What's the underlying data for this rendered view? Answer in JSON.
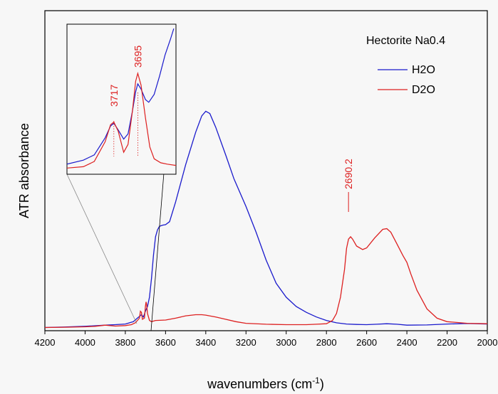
{
  "chart_data": {
    "type": "line",
    "title": "",
    "xlabel": "wavenumbers (cm",
    "xlabel_sup": "-1",
    "xlabel_close": ")",
    "ylabel": "ATR absorbance",
    "xlim": [
      4200,
      2000
    ],
    "x_reversed": true,
    "y_ticks_shown": false,
    "x_ticks": [
      4200,
      4000,
      3800,
      3600,
      3400,
      3200,
      3000,
      2800,
      2600,
      2400,
      2200,
      2000
    ],
    "legend": {
      "title": "Hectorite Na0.4",
      "placement": "top-right"
    },
    "series": [
      {
        "name": "H2O",
        "color": "#1a1acc",
        "points": [
          [
            4200,
            0.02
          ],
          [
            4100,
            0.022
          ],
          [
            4000,
            0.025
          ],
          [
            3900,
            0.03
          ],
          [
            3850,
            0.032
          ],
          [
            3800,
            0.035
          ],
          [
            3760,
            0.045
          ],
          [
            3740,
            0.06
          ],
          [
            3720,
            0.075
          ],
          [
            3710,
            0.065
          ],
          [
            3700,
            0.09
          ],
          [
            3690,
            0.11
          ],
          [
            3680,
            0.15
          ],
          [
            3670,
            0.23
          ],
          [
            3660,
            0.33
          ],
          [
            3650,
            0.41
          ],
          [
            3640,
            0.44
          ],
          [
            3630,
            0.455
          ],
          [
            3615,
            0.46
          ],
          [
            3600,
            0.462
          ],
          [
            3580,
            0.475
          ],
          [
            3550,
            0.56
          ],
          [
            3500,
            0.72
          ],
          [
            3450,
            0.86
          ],
          [
            3420,
            0.93
          ],
          [
            3400,
            0.95
          ],
          [
            3380,
            0.94
          ],
          [
            3350,
            0.88
          ],
          [
            3300,
            0.76
          ],
          [
            3260,
            0.66
          ],
          [
            3220,
            0.58
          ],
          [
            3200,
            0.54
          ],
          [
            3150,
            0.43
          ],
          [
            3100,
            0.31
          ],
          [
            3050,
            0.21
          ],
          [
            3000,
            0.15
          ],
          [
            2950,
            0.11
          ],
          [
            2900,
            0.085
          ],
          [
            2850,
            0.065
          ],
          [
            2800,
            0.05
          ],
          [
            2750,
            0.04
          ],
          [
            2700,
            0.035
          ],
          [
            2650,
            0.033
          ],
          [
            2600,
            0.032
          ],
          [
            2550,
            0.034
          ],
          [
            2500,
            0.036
          ],
          [
            2450,
            0.034
          ],
          [
            2400,
            0.03
          ],
          [
            2300,
            0.031
          ],
          [
            2200,
            0.035
          ],
          [
            2100,
            0.037
          ],
          [
            2000,
            0.035
          ]
        ]
      },
      {
        "name": "D2O",
        "color": "#dd2020",
        "points": [
          [
            4200,
            0.02
          ],
          [
            4100,
            0.021
          ],
          [
            4000,
            0.023
          ],
          [
            3950,
            0.025
          ],
          [
            3900,
            0.03
          ],
          [
            3850,
            0.026
          ],
          [
            3800,
            0.028
          ],
          [
            3770,
            0.032
          ],
          [
            3750,
            0.04
          ],
          [
            3730,
            0.06
          ],
          [
            3725,
            0.09
          ],
          [
            3720,
            0.085
          ],
          [
            3715,
            0.055
          ],
          [
            3705,
            0.06
          ],
          [
            3700,
            0.11
          ],
          [
            3697,
            0.13
          ],
          [
            3694,
            0.12
          ],
          [
            3690,
            0.08
          ],
          [
            3680,
            0.05
          ],
          [
            3670,
            0.045
          ],
          [
            3650,
            0.05
          ],
          [
            3600,
            0.052
          ],
          [
            3550,
            0.06
          ],
          [
            3500,
            0.07
          ],
          [
            3450,
            0.075
          ],
          [
            3420,
            0.075
          ],
          [
            3400,
            0.073
          ],
          [
            3350,
            0.065
          ],
          [
            3300,
            0.055
          ],
          [
            3250,
            0.045
          ],
          [
            3200,
            0.038
          ],
          [
            3100,
            0.034
          ],
          [
            3000,
            0.032
          ],
          [
            2900,
            0.032
          ],
          [
            2850,
            0.034
          ],
          [
            2800,
            0.036
          ],
          [
            2770,
            0.05
          ],
          [
            2750,
            0.08
          ],
          [
            2730,
            0.15
          ],
          [
            2710,
            0.27
          ],
          [
            2700,
            0.36
          ],
          [
            2690,
            0.4
          ],
          [
            2680,
            0.41
          ],
          [
            2670,
            0.4
          ],
          [
            2650,
            0.37
          ],
          [
            2620,
            0.355
          ],
          [
            2600,
            0.362
          ],
          [
            2560,
            0.405
          ],
          [
            2520,
            0.442
          ],
          [
            2500,
            0.445
          ],
          [
            2480,
            0.43
          ],
          [
            2450,
            0.38
          ],
          [
            2420,
            0.33
          ],
          [
            2400,
            0.3
          ],
          [
            2380,
            0.25
          ],
          [
            2350,
            0.18
          ],
          [
            2300,
            0.1
          ],
          [
            2250,
            0.06
          ],
          [
            2200,
            0.045
          ],
          [
            2100,
            0.038
          ],
          [
            2000,
            0.036
          ]
        ]
      }
    ],
    "annotations": [
      {
        "text": "2690.2",
        "x": 2690.2,
        "color": "#dd2020"
      }
    ],
    "inset": {
      "xlim": [
        3760,
        3660
      ],
      "annotations": [
        {
          "text": "3717",
          "x": 3717,
          "color": "#dd2020"
        },
        {
          "text": "3695",
          "x": 3695,
          "color": "#dd2020"
        }
      ],
      "series": [
        {
          "name": "H2O",
          "color": "#1a1acc",
          "points": [
            [
              3760,
              0.05
            ],
            [
              3745,
              0.08
            ],
            [
              3735,
              0.12
            ],
            [
              3725,
              0.25
            ],
            [
              3720,
              0.34
            ],
            [
              3717,
              0.36
            ],
            [
              3713,
              0.31
            ],
            [
              3708,
              0.24
            ],
            [
              3704,
              0.28
            ],
            [
              3700,
              0.45
            ],
            [
              3697,
              0.6
            ],
            [
              3695,
              0.66
            ],
            [
              3692,
              0.62
            ],
            [
              3688,
              0.54
            ],
            [
              3685,
              0.52
            ],
            [
              3680,
              0.58
            ],
            [
              3675,
              0.72
            ],
            [
              3670,
              0.88
            ],
            [
              3665,
              1.0
            ],
            [
              3662,
              1.08
            ]
          ]
        },
        {
          "name": "D2O",
          "color": "#dd2020",
          "points": [
            [
              3760,
              0.02
            ],
            [
              3745,
              0.03
            ],
            [
              3735,
              0.07
            ],
            [
              3725,
              0.22
            ],
            [
              3720,
              0.35
            ],
            [
              3717,
              0.37
            ],
            [
              3713,
              0.3
            ],
            [
              3708,
              0.14
            ],
            [
              3704,
              0.2
            ],
            [
              3700,
              0.45
            ],
            [
              3697,
              0.68
            ],
            [
              3695,
              0.74
            ],
            [
              3692,
              0.65
            ],
            [
              3688,
              0.4
            ],
            [
              3684,
              0.18
            ],
            [
              3680,
              0.09
            ],
            [
              3674,
              0.06
            ],
            [
              3668,
              0.05
            ],
            [
              3660,
              0.04
            ]
          ]
        }
      ]
    }
  }
}
